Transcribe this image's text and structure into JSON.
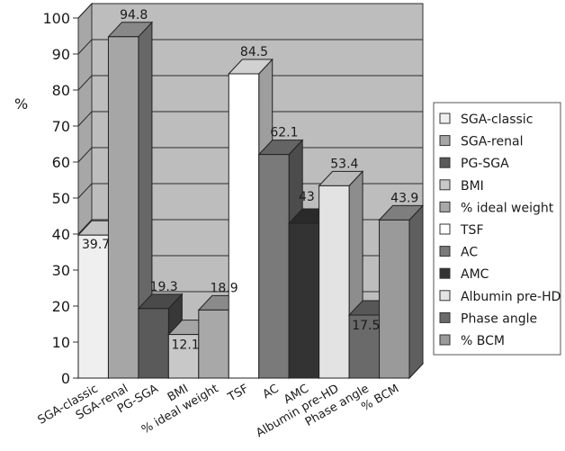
{
  "chart_data": {
    "type": "bar",
    "title": "",
    "xlabel": "",
    "ylabel": "%",
    "ylim": [
      0,
      100
    ],
    "y_ticks": [
      0,
      10,
      20,
      30,
      40,
      50,
      60,
      70,
      80,
      90,
      100
    ],
    "grid": true,
    "three_d": true,
    "legend_position": "right",
    "categories": [
      "SGA-classic",
      "SGA-renal",
      "PG-SGA",
      "BMI",
      "% ideal weight",
      "TSF",
      "AC",
      "AMC",
      "Albumin pre-HD",
      "Phase angle",
      "% BCM"
    ],
    "values": [
      39.7,
      94.8,
      19.3,
      12.1,
      18.9,
      84.5,
      62.1,
      43,
      53.4,
      17.5,
      43.9
    ],
    "labels": [
      "39.7",
      "94.8",
      "19.3",
      "12.1",
      "18.9",
      "84.5",
      "62.1",
      "43",
      "53.4",
      "17.5",
      "43.9"
    ],
    "colors": [
      "#efefef",
      "#a6a6a6",
      "#5a5a5a",
      "#c8c8c8",
      "#a8a8a8",
      "#ffffff",
      "#7a7a7a",
      "#333333",
      "#e3e3e3",
      "#6a6a6a",
      "#9a9a9a"
    ]
  }
}
